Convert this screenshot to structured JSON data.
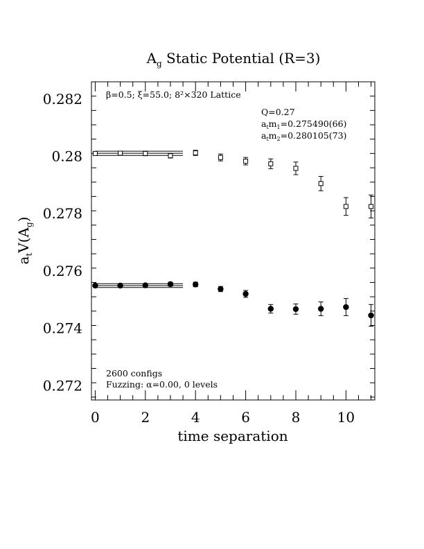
{
  "chart_data": {
    "type": "scatter",
    "title": {
      "main": "A",
      "main_subscript": "g",
      "rest": " Static Potential (R=3)"
    },
    "xlabel": "time separation",
    "ylabel": {
      "prefix": "a",
      "prefix_subscript": "t",
      "middle": "V(A",
      "middle_subscript": "g",
      "suffix": ")"
    },
    "xlim": [
      -0.15,
      11.15
    ],
    "ylim": [
      0.2715,
      0.2826
    ],
    "x_ticks": [
      0,
      2,
      4,
      6,
      8,
      10
    ],
    "x_tick_labels": [
      "0",
      "2",
      "4",
      "6",
      "8",
      "10"
    ],
    "y_ticks": [
      0.272,
      0.274,
      0.276,
      0.278,
      0.28,
      0.282
    ],
    "y_tick_labels": [
      "0.272",
      "0.274",
      "0.276",
      "0.278",
      "0.28",
      "0.282"
    ],
    "grid": false,
    "annotations": {
      "lattice": "β=0.5; ξ=55.0; 8²×320 Lattice",
      "q": "Q=0.27",
      "m1_prefix": "a",
      "m1_prefix_sub": "t",
      "m1_mid": "m",
      "m1_mid_sub": "1",
      "m1_value": "=0.275490(66)",
      "m2_prefix": "a",
      "m2_prefix_sub": "t",
      "m2_mid": "m",
      "m2_mid_sub": "2",
      "m2_value": "=0.280105(73)",
      "configs": "2600 configs",
      "fuzzing": "Fuzzing: α=0.00, 0 levels"
    },
    "series": [
      {
        "marker": "open-square",
        "x": [
          0,
          1,
          2,
          3,
          4,
          5,
          6,
          7,
          8,
          9,
          10,
          11
        ],
        "y": [
          0.2801,
          0.28011,
          0.2801,
          0.28002,
          0.28012,
          0.27996,
          0.27983,
          0.27974,
          0.27958,
          0.27905,
          0.27825,
          0.27825
        ],
        "err": [
          5e-05,
          5e-05,
          8e-05,
          8e-05,
          9e-05,
          0.00012,
          0.00013,
          0.00017,
          0.00022,
          0.00025,
          0.00031,
          0.0004
        ]
      },
      {
        "marker": "filled-circle",
        "x": [
          0,
          1,
          2,
          3,
          4,
          5,
          6,
          7,
          8,
          9,
          10,
          11
        ],
        "y": [
          0.27549,
          0.27549,
          0.2755,
          0.27554,
          0.27553,
          0.27537,
          0.2752,
          0.27468,
          0.27467,
          0.27468,
          0.27474,
          0.27445
        ],
        "err": [
          4e-05,
          4e-05,
          6e-05,
          7e-05,
          8e-05,
          9e-05,
          0.00012,
          0.00015,
          0.00018,
          0.00024,
          0.0003,
          0.00038
        ]
      }
    ],
    "fit_bands": [
      {
        "x_start": 0,
        "x_end": 3.5,
        "value": 0.280105,
        "err": 7.3e-05
      },
      {
        "x_start": 0,
        "x_end": 3.5,
        "value": 0.27549,
        "err": 6.6e-05
      }
    ]
  }
}
